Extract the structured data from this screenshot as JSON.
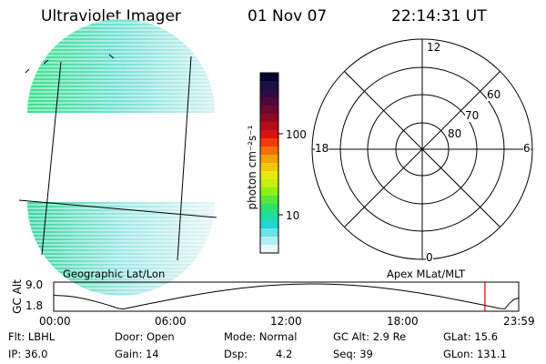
{
  "header": {
    "title": "Ultraviolet Imager",
    "date": "01 Nov 07",
    "time": "22:14:31 UT"
  },
  "colorbar": {
    "unit_label": "photon cm⁻²s⁻¹",
    "ticks": [
      "100",
      "10"
    ],
    "colors": [
      "#000033",
      "#1a1040",
      "#300a45",
      "#4a0a3c",
      "#6a0a30",
      "#8e0a23",
      "#b40c18",
      "#d81212",
      "#f03c0a",
      "#f56e08",
      "#f6a00a",
      "#f1c80c",
      "#e6ea10",
      "#c2f010",
      "#8ef01a",
      "#5ae63c",
      "#2ee06e",
      "#1edca4",
      "#22d6d0",
      "#6ae4e8",
      "#b2eff2",
      "#e8f8fa"
    ]
  },
  "polar": {
    "mlt_labels": {
      "top": "12",
      "left": "18",
      "right": "6",
      "bottom": "0"
    },
    "lat_labels": [
      "60",
      "70",
      "80"
    ]
  },
  "map_labels": {
    "geographic": "Geographic Lat/Lon",
    "apex": "Apex MLat/MLT"
  },
  "orbit": {
    "axis_label": "GC Alt",
    "y_ticks": [
      "9.0",
      "1.8"
    ],
    "x_ticks": [
      "00:00",
      "06:00",
      "12:00",
      "18:00",
      "23:59"
    ],
    "marker_hour": 22.24,
    "marker_color": "#dd0000"
  },
  "status": {
    "flt": "Flt: LBHL",
    "ip": "IP: 36.0",
    "door": "Door: Open",
    "gain": "Gain: 14",
    "mode": "Mode: Normal",
    "dsp_label": "Dsp:",
    "dsp_value": "4.2",
    "gc_alt": "GC Alt: 2.9 Re",
    "seq": "Seq: 39",
    "glat": "GLat:  15.6",
    "glon": "GLon: 131.1"
  }
}
